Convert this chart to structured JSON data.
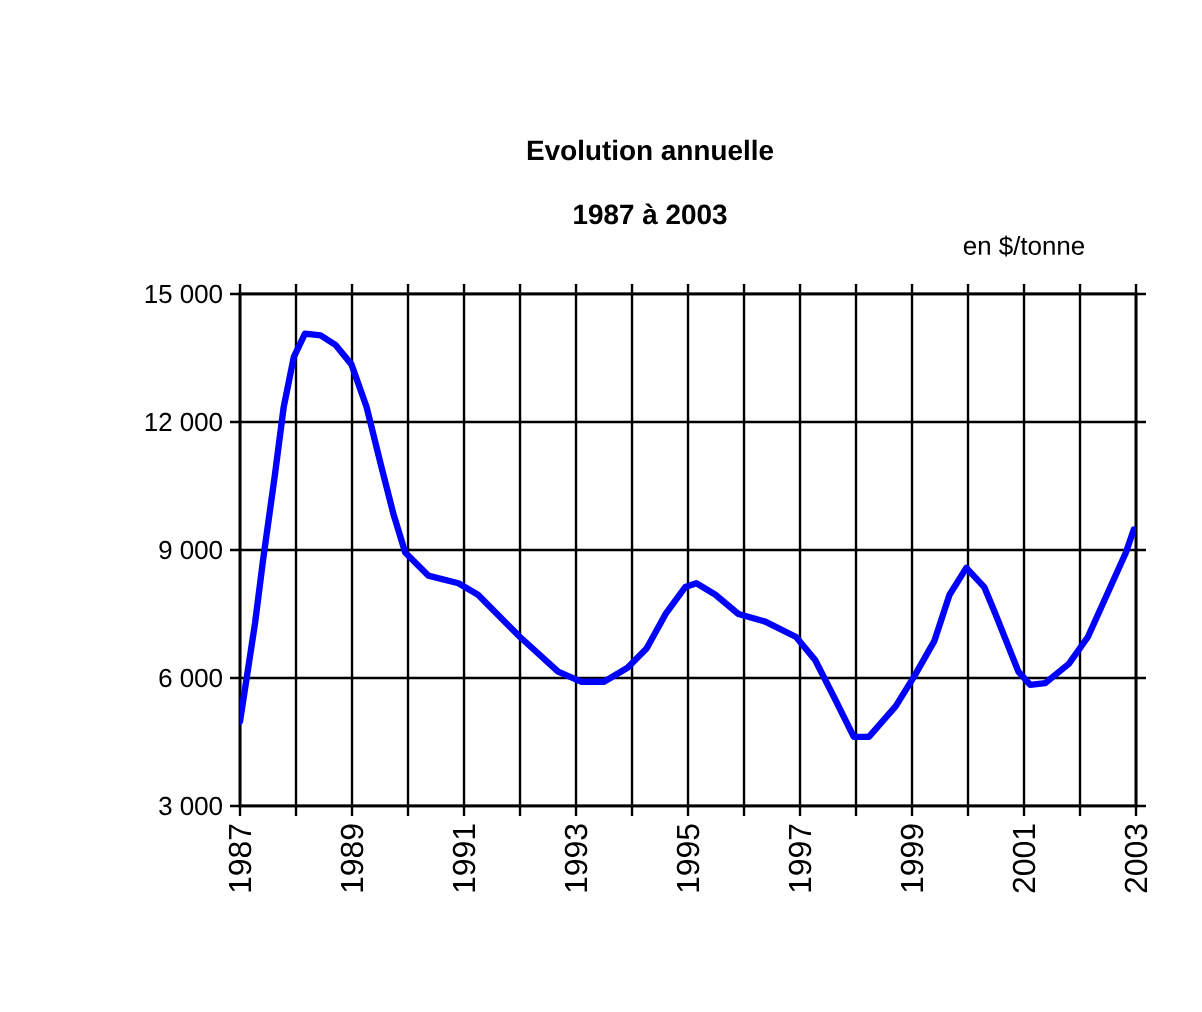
{
  "chart_data": {
    "type": "line",
    "title": "Evolution annuelle",
    "subtitle": "1987 à 2003",
    "annotations": [
      "en $/tonne"
    ],
    "x": [
      1987.0,
      1987.27,
      1987.41,
      1987.62,
      1987.78,
      1987.96,
      1988.16,
      1988.44,
      1988.71,
      1988.99,
      1989.26,
      1989.53,
      1989.74,
      1989.95,
      1990.36,
      1990.9,
      1991.25,
      1992.0,
      1992.68,
      1993.1,
      1993.5,
      1993.92,
      1994.26,
      1994.6,
      1994.95,
      1995.15,
      1995.49,
      1995.9,
      1996.38,
      1996.93,
      1997.27,
      1997.62,
      1997.96,
      1998.23,
      1998.71,
      1999.05,
      1999.4,
      1999.67,
      1999.97,
      2000.29,
      2000.49,
      2000.9,
      2001.11,
      2001.38,
      2001.8,
      2002.14,
      2002.48,
      2002.82,
      2002.96
    ],
    "series": [
      {
        "color": "#0000ff",
        "values": [
          4980,
          7300,
          8750,
          10730,
          12350,
          13520,
          14070,
          14030,
          13800,
          13350,
          12350,
          10920,
          9840,
          8940,
          8400,
          8220,
          7950,
          6960,
          6150,
          5910,
          5910,
          6240,
          6690,
          7500,
          8130,
          8220,
          7950,
          7500,
          7320,
          6960,
          6420,
          5520,
          4620,
          4620,
          5340,
          6060,
          6870,
          7950,
          8580,
          8130,
          7500,
          6150,
          5840,
          5880,
          6330,
          6960,
          7950,
          8940,
          9480
        ]
      }
    ],
    "xlim": [
      1987,
      2003
    ],
    "ylim": [
      3000,
      15000
    ],
    "xticks": [
      1987,
      {
        "value": 1988,
        "label": null
      },
      1989,
      {
        "value": 1990,
        "label": null
      },
      1991,
      {
        "value": 1992,
        "label": null
      },
      1993,
      {
        "value": 1994,
        "label": null
      },
      1995,
      {
        "value": 1996,
        "label": null
      },
      1997,
      {
        "value": 1998,
        "label": null
      },
      1999,
      {
        "value": 2000,
        "label": null
      },
      2001,
      {
        "value": 2002,
        "label": null
      },
      2003
    ],
    "yticks": [
      {
        "value": 3000,
        "label": "3 000"
      },
      {
        "value": 6000,
        "label": "6 000"
      },
      {
        "value": 9000,
        "label": "9 000"
      },
      {
        "value": 12000,
        "label": "12 000"
      },
      {
        "value": 15000,
        "label": "15 000"
      }
    ],
    "grid": true,
    "marker": "none",
    "line_style": "solid"
  }
}
